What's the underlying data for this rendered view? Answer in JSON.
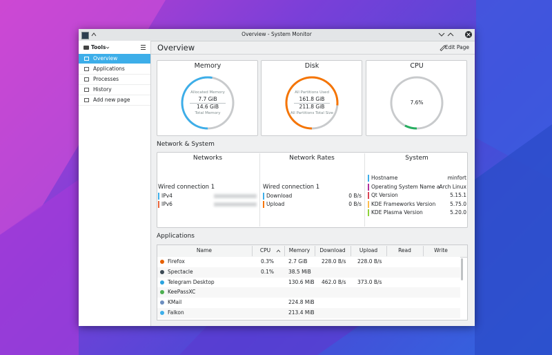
{
  "window": {
    "title": "Overview - System Monitor"
  },
  "sidebar": {
    "menu": "Tools",
    "items": [
      "Overview",
      "Applications",
      "Processes",
      "History",
      "Add new page"
    ]
  },
  "header": {
    "title": "Overview",
    "action": "Edit Page"
  },
  "cards": [
    {
      "title": "Memory",
      "top_label": "Allocated Memory",
      "used": {
        "value": 7.7,
        "label": "7.7 GiB"
      },
      "total": {
        "value": 14.6,
        "label": "14.6 GiB"
      },
      "bottom_label": "Total Memory",
      "color": "#3daee9"
    },
    {
      "title": "Disk",
      "top_label": "All Partitions Used",
      "used": {
        "value": 161.8,
        "label": "161.8 GiB"
      },
      "total": {
        "value": 211.8,
        "label": "211.8 GiB"
      },
      "bottom_label": "All Partitions Total Size",
      "color": "#f67400"
    },
    {
      "title": "CPU",
      "usage": {
        "value": 7.6,
        "label": "7.6%"
      },
      "color": "#27ae60"
    }
  ],
  "network_section": {
    "title": "Network & System",
    "networks": {
      "title": "Networks",
      "connection": "Wired connection 1",
      "rows": [
        {
          "name": "IPv4",
          "color": "#3daee9"
        },
        {
          "name": "IPv6",
          "color": "#e9643a"
        }
      ]
    },
    "rates": {
      "title": "Network Rates",
      "connection": "Wired connection 1",
      "rows": [
        {
          "name": "Download",
          "value": "0 B/s",
          "color": "#3daee9"
        },
        {
          "name": "Upload",
          "value": "0 B/s",
          "color": "#f67400"
        }
      ]
    },
    "system": {
      "title": "System",
      "rows": [
        {
          "name": "Hostname",
          "value": "minfort",
          "color": "#3daee9"
        },
        {
          "name": "Operating System Name an...",
          "value": "Arch Linux",
          "color": "#b0309b"
        },
        {
          "name": "Qt Version",
          "value": "5.15.1",
          "color": "#da4453"
        },
        {
          "name": "KDE Frameworks Version",
          "value": "5.75.0",
          "color": "#fdbc4b"
        },
        {
          "name": "KDE Plasma Version",
          "value": "5.20.0",
          "color": "#8ed33a"
        }
      ]
    }
  },
  "applications": {
    "title": "Applications",
    "columns": [
      "Name",
      "CPU",
      "Memory",
      "Download",
      "Upload",
      "Read",
      "Write"
    ],
    "rows": [
      [
        "Firefox",
        "0.3%",
        "2.7 GiB",
        "228.0 B/s",
        "228.0 B/s",
        null,
        null
      ],
      [
        "Spectacle",
        "0.1%",
        "38.5 MiB",
        null,
        null,
        null,
        null
      ],
      [
        "Telegram Desktop",
        null,
        "130.6 MiB",
        "462.0 B/s",
        "373.0 B/s",
        null,
        null
      ],
      [
        "KeePassXC",
        null,
        null,
        null,
        null,
        null,
        null
      ],
      [
        "KMail",
        null,
        "224.8 MiB",
        null,
        null,
        null,
        null
      ],
      [
        "Falkon",
        null,
        "213.4 MiB",
        null,
        null,
        null,
        null
      ]
    ]
  }
}
